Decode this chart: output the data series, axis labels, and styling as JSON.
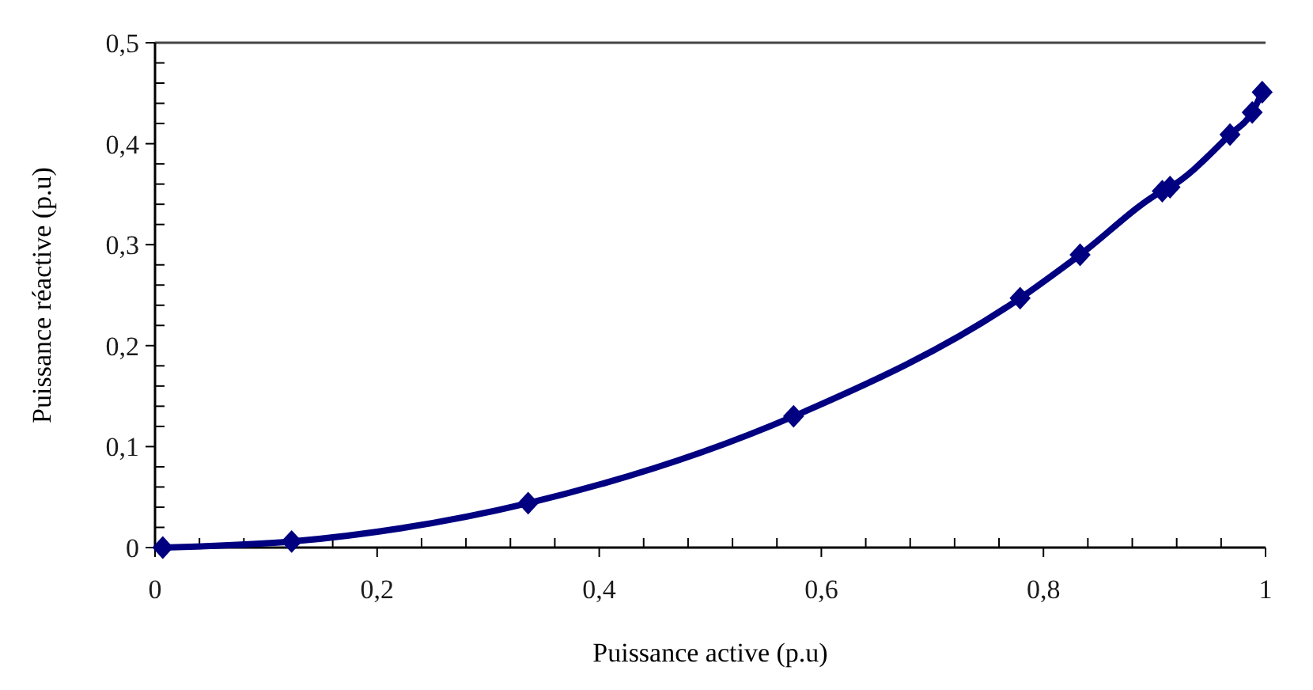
{
  "chart_data": {
    "type": "line",
    "xlabel": "Puissance active (p.u)",
    "ylabel": "Puissance réactive (p.u)",
    "x": [
      0.007,
      0.123,
      0.336,
      0.575,
      0.779,
      0.833,
      0.907,
      0.914,
      0.968,
      0.988,
      0.997
    ],
    "series": [
      {
        "color": "#000080",
        "values": [
          0,
          0.006,
          0.044,
          0.13,
          0.247,
          0.29,
          0.353,
          0.357,
          0.409,
          0.431,
          0.451
        ]
      }
    ],
    "xlim": [
      0,
      1
    ],
    "ylim": [
      0,
      0.5
    ],
    "xticks": [
      0,
      {
        "value": 0.04,
        "label": null
      },
      {
        "value": 0.08,
        "label": null
      },
      {
        "value": 0.12,
        "label": null
      },
      {
        "value": 0.16,
        "label": null
      },
      {
        "value": 0.2,
        "label": "0,2"
      },
      {
        "value": 0.24,
        "label": null
      },
      {
        "value": 0.28,
        "label": null
      },
      {
        "value": 0.32,
        "label": null
      },
      {
        "value": 0.36,
        "label": null
      },
      {
        "value": 0.4,
        "label": "0,4"
      },
      {
        "value": 0.44,
        "label": null
      },
      {
        "value": 0.48,
        "label": null
      },
      {
        "value": 0.52,
        "label": null
      },
      {
        "value": 0.56,
        "label": null
      },
      {
        "value": 0.6,
        "label": "0,6"
      },
      {
        "value": 0.64,
        "label": null
      },
      {
        "value": 0.68,
        "label": null
      },
      {
        "value": 0.72,
        "label": null
      },
      {
        "value": 0.76,
        "label": null
      },
      {
        "value": 0.8,
        "label": "0,8"
      },
      {
        "value": 0.84,
        "label": null
      },
      {
        "value": 0.88,
        "label": null
      },
      {
        "value": 0.92,
        "label": null
      },
      {
        "value": 0.96,
        "label": null
      },
      1
    ],
    "yticks": [
      0,
      {
        "value": 0.02,
        "label": null
      },
      {
        "value": 0.04,
        "label": null
      },
      {
        "value": 0.06,
        "label": null
      },
      {
        "value": 0.08,
        "label": null
      },
      {
        "value": 0.1,
        "label": "0,1"
      },
      {
        "value": 0.12,
        "label": null
      },
      {
        "value": 0.14,
        "label": null
      },
      {
        "value": 0.16,
        "label": null
      },
      {
        "value": 0.18,
        "label": null
      },
      {
        "value": 0.2,
        "label": "0,2"
      },
      {
        "value": 0.22,
        "label": null
      },
      {
        "value": 0.24,
        "label": null
      },
      {
        "value": 0.26,
        "label": null
      },
      {
        "value": 0.28,
        "label": null
      },
      {
        "value": 0.3,
        "label": "0,3"
      },
      {
        "value": 0.32,
        "label": null
      },
      {
        "value": 0.34,
        "label": null
      },
      {
        "value": 0.36,
        "label": null
      },
      {
        "value": 0.38,
        "label": null
      },
      {
        "value": 0.4,
        "label": "0,4"
      },
      {
        "value": 0.42,
        "label": null
      },
      {
        "value": 0.44,
        "label": null
      },
      {
        "value": 0.46,
        "label": null
      },
      {
        "value": 0.48,
        "label": null
      },
      {
        "value": 0.5,
        "label": "0,5"
      }
    ],
    "grid": false,
    "marker": "diamond",
    "line_style": "solid"
  }
}
